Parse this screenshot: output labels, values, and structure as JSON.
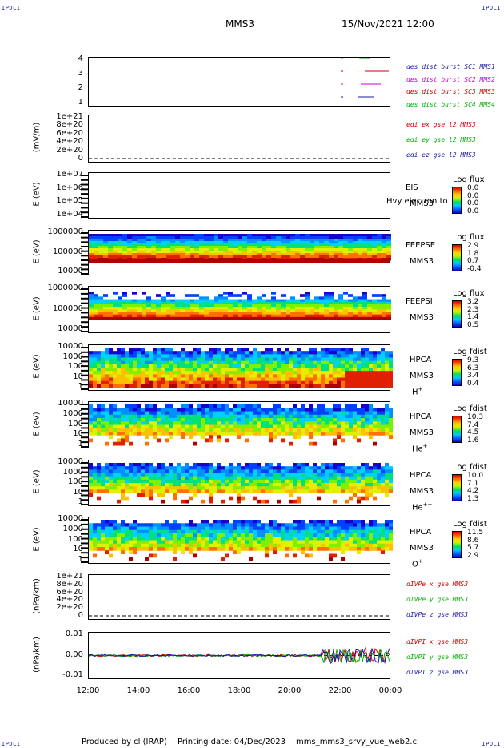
{
  "corners": {
    "top_left": "IPDLI",
    "top_right": "IPDLI",
    "bottom_left": "IPDLI",
    "bottom_right": "IPDLI"
  },
  "header": {
    "title": "MMS3",
    "datetime": "15/Nov/2021 12:00"
  },
  "footer": {
    "produced_by": "Produced by cl (IRAP)",
    "printing_date": "Printing date: 04/Dec/2023",
    "script": "mms_mms3_srvy_vue_web2.cl"
  },
  "chart_data": [
    {
      "type": "line",
      "panel": "burst",
      "ylabel": "",
      "yticks": [
        "4",
        "3",
        "2",
        "1"
      ],
      "series": [
        {
          "name": "des dist burst SC1 MMS1",
          "color": "#1a1aa6"
        },
        {
          "name": "des dist burst SC2 MMS2",
          "color": "#cc00cc"
        },
        {
          "name": "des dist burst SC3 MMS3",
          "color": "#cc0000"
        },
        {
          "name": "des dist burst SC4 MMS4",
          "color": "#00b000"
        }
      ]
    },
    {
      "type": "line",
      "panel": "edi",
      "ylabel": "(mV/m)",
      "yticks": [
        "1e+21",
        "8e+20",
        "6e+20",
        "4e+20",
        "2e+20",
        "0"
      ],
      "series": [
        {
          "name": "edi ex gse l2 MMS3",
          "color": "#cc0000"
        },
        {
          "name": "edi ey gse l2 MMS3",
          "color": "#00b000"
        },
        {
          "name": "edi ez gse l2 MMS3",
          "color": "#1a1aa6"
        }
      ]
    },
    {
      "type": "heatmap",
      "panel": "eis",
      "ylabel": "E (eV)",
      "yticks": [
        "1e+07",
        "1e+06",
        "1e+05",
        "1e+04"
      ],
      "instrument": "EIS",
      "spacecraft": "MMS3",
      "overlay_text": "Hvy electron to",
      "colorbar": {
        "title": "Log flux",
        "values": [
          "0.0",
          "0.0",
          "0.0",
          "0.0"
        ]
      }
    },
    {
      "type": "heatmap",
      "panel": "feepse",
      "ylabel": "E (eV)",
      "yticks": [
        "1000000",
        "100000",
        "10000"
      ],
      "instrument": "FEEPSE",
      "spacecraft": "MMS3",
      "colorbar": {
        "title": "Log flux",
        "values": [
          "2.9",
          "1.8",
          "0.7",
          "-0.4"
        ]
      }
    },
    {
      "type": "heatmap",
      "panel": "feepsi",
      "ylabel": "E (eV)",
      "yticks": [
        "1000000",
        "100000",
        "10000"
      ],
      "instrument": "FEEPSI",
      "spacecraft": "MMS3",
      "colorbar": {
        "title": "Log flux",
        "values": [
          "3.2",
          "2.3",
          "1.4",
          "0.5"
        ]
      }
    },
    {
      "type": "heatmap",
      "panel": "hpca_h",
      "ylabel": "E (eV)",
      "yticks": [
        "10000",
        "1000",
        "100",
        "10",
        "1"
      ],
      "instrument": "HPCA",
      "spacecraft": "MMS3",
      "species": "H",
      "species_charge": "+",
      "colorbar": {
        "title": "Log fdist",
        "values": [
          "9.3",
          "6.3",
          "3.4",
          "0.4"
        ]
      }
    },
    {
      "type": "heatmap",
      "panel": "hpca_he1",
      "ylabel": "E (eV)",
      "yticks": [
        "10000",
        "1000",
        "100",
        "10",
        "1"
      ],
      "instrument": "HPCA",
      "spacecraft": "MMS3",
      "species": "He",
      "species_charge": "+",
      "colorbar": {
        "title": "Log fdist",
        "values": [
          "10.3",
          "7.4",
          "4.5",
          "1.6"
        ]
      }
    },
    {
      "type": "heatmap",
      "panel": "hpca_he2",
      "ylabel": "E (eV)",
      "yticks": [
        "10000",
        "1000",
        "100",
        "10",
        "1"
      ],
      "instrument": "HPCA",
      "spacecraft": "MMS3",
      "species": "He",
      "species_charge": "++",
      "colorbar": {
        "title": "Log fdist",
        "values": [
          "10.0",
          "7.1",
          "4.2",
          "1.3"
        ]
      }
    },
    {
      "type": "heatmap",
      "panel": "hpca_o",
      "ylabel": "E (eV)",
      "yticks": [
        "10000",
        "1000",
        "100",
        "10",
        "1"
      ],
      "instrument": "HPCA",
      "spacecraft": "MMS3",
      "species": "O",
      "species_charge": "+",
      "colorbar": {
        "title": "Log fdist",
        "values": [
          "11.5",
          "8.6",
          "5.7",
          "2.9"
        ]
      }
    },
    {
      "type": "line",
      "panel": "divpe",
      "ylabel": "(nPa/km)",
      "yticks": [
        "1e+21",
        "8e+20",
        "6e+20",
        "4e+20",
        "2e+20",
        "0"
      ],
      "series": [
        {
          "name": "dIVPe x gse MMS3",
          "color": "#cc0000"
        },
        {
          "name": "dIVPe y gse MMS3",
          "color": "#00b000"
        },
        {
          "name": "dIVPe z gse MMS3",
          "color": "#1a1aa6"
        }
      ]
    },
    {
      "type": "line",
      "panel": "divpi",
      "ylabel": "(nPa/km)",
      "yticks": [
        "0.01",
        "0.00",
        "-0.01"
      ],
      "series": [
        {
          "name": "dIVPI x gse MMS3",
          "color": "#cc0000"
        },
        {
          "name": "dIVPI y gse MMS3",
          "color": "#00b000"
        },
        {
          "name": "dIVPI z gse MMS3",
          "color": "#1a1aa6"
        }
      ]
    }
  ],
  "xaxis": {
    "ticks": [
      "12:00",
      "14:00",
      "16:00",
      "18:00",
      "20:00",
      "22:00",
      "00:00"
    ]
  }
}
